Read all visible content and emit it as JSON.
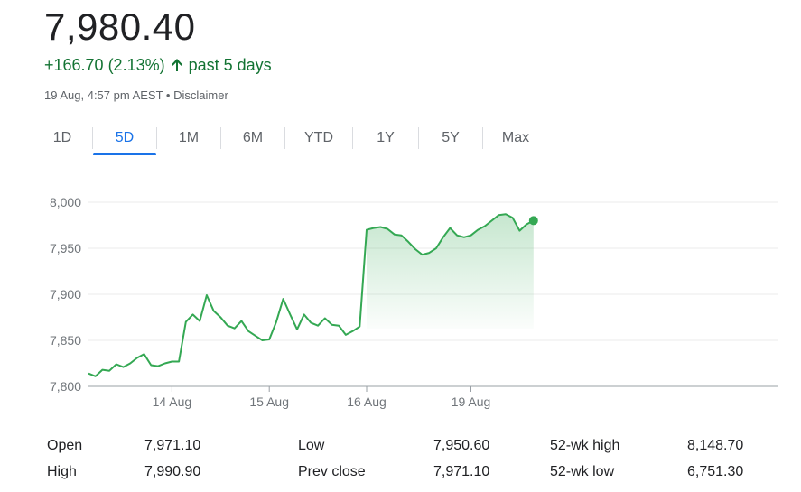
{
  "quote": {
    "price": "7,980.40",
    "change": "+166.70 (2.13%)",
    "period": "past 5 days",
    "timestamp": "19 Aug, 4:57 pm AEST",
    "separator": "•",
    "disclaimer": "Disclaimer",
    "up_color": "#137333"
  },
  "tabs": [
    "1D",
    "5D",
    "1M",
    "6M",
    "YTD",
    "1Y",
    "5Y",
    "Max"
  ],
  "active_tab": "5D",
  "accent_color": "#1a73e8",
  "icons": {
    "change_direction": "arrow-up-icon"
  },
  "chart_data": {
    "type": "area",
    "line_color": "#34a853",
    "grid": true,
    "ylim": [
      7800,
      8000
    ],
    "yticks": [
      "8,000",
      "7,950",
      "7,900",
      "7,850",
      "7,800"
    ],
    "ytick_values": [
      8000,
      7950,
      7900,
      7850,
      7800
    ],
    "xticks": [
      {
        "label": "14 Aug",
        "index": 12
      },
      {
        "label": "15 Aug",
        "index": 26
      },
      {
        "label": "16 Aug",
        "index": 40
      },
      {
        "label": "19 Aug",
        "index": 55
      }
    ],
    "x_count": 69,
    "values": [
      7814,
      7811,
      7818,
      7817,
      7824,
      7821,
      7825,
      7831,
      7835,
      7823,
      7822,
      7825,
      7827,
      7827,
      7870,
      7878,
      7871,
      7899,
      7882,
      7875,
      7866,
      7863,
      7871,
      7860,
      7855,
      7850,
      7851,
      7870,
      7895,
      7878,
      7862,
      7878,
      7869,
      7866,
      7874,
      7867,
      7866,
      7856,
      7860,
      7865,
      7970,
      7972,
      7973,
      7971,
      7965,
      7964,
      7957,
      7949,
      7943,
      7945,
      7950,
      7962,
      7972,
      7964,
      7962,
      7964,
      7970,
      7974,
      7980,
      7986,
      7987,
      7983,
      7969,
      7976,
      7980
    ],
    "end_point": 7980
  },
  "stats": {
    "rows": [
      [
        {
          "label": "Open",
          "value": "7,971.10"
        },
        {
          "label": "Low",
          "value": "7,950.60"
        },
        {
          "label": "52-wk high",
          "value": "8,148.70"
        }
      ],
      [
        {
          "label": "High",
          "value": "7,990.90"
        },
        {
          "label": "Prev close",
          "value": "7,971.10"
        },
        {
          "label": "52-wk low",
          "value": "6,751.30"
        }
      ]
    ]
  }
}
